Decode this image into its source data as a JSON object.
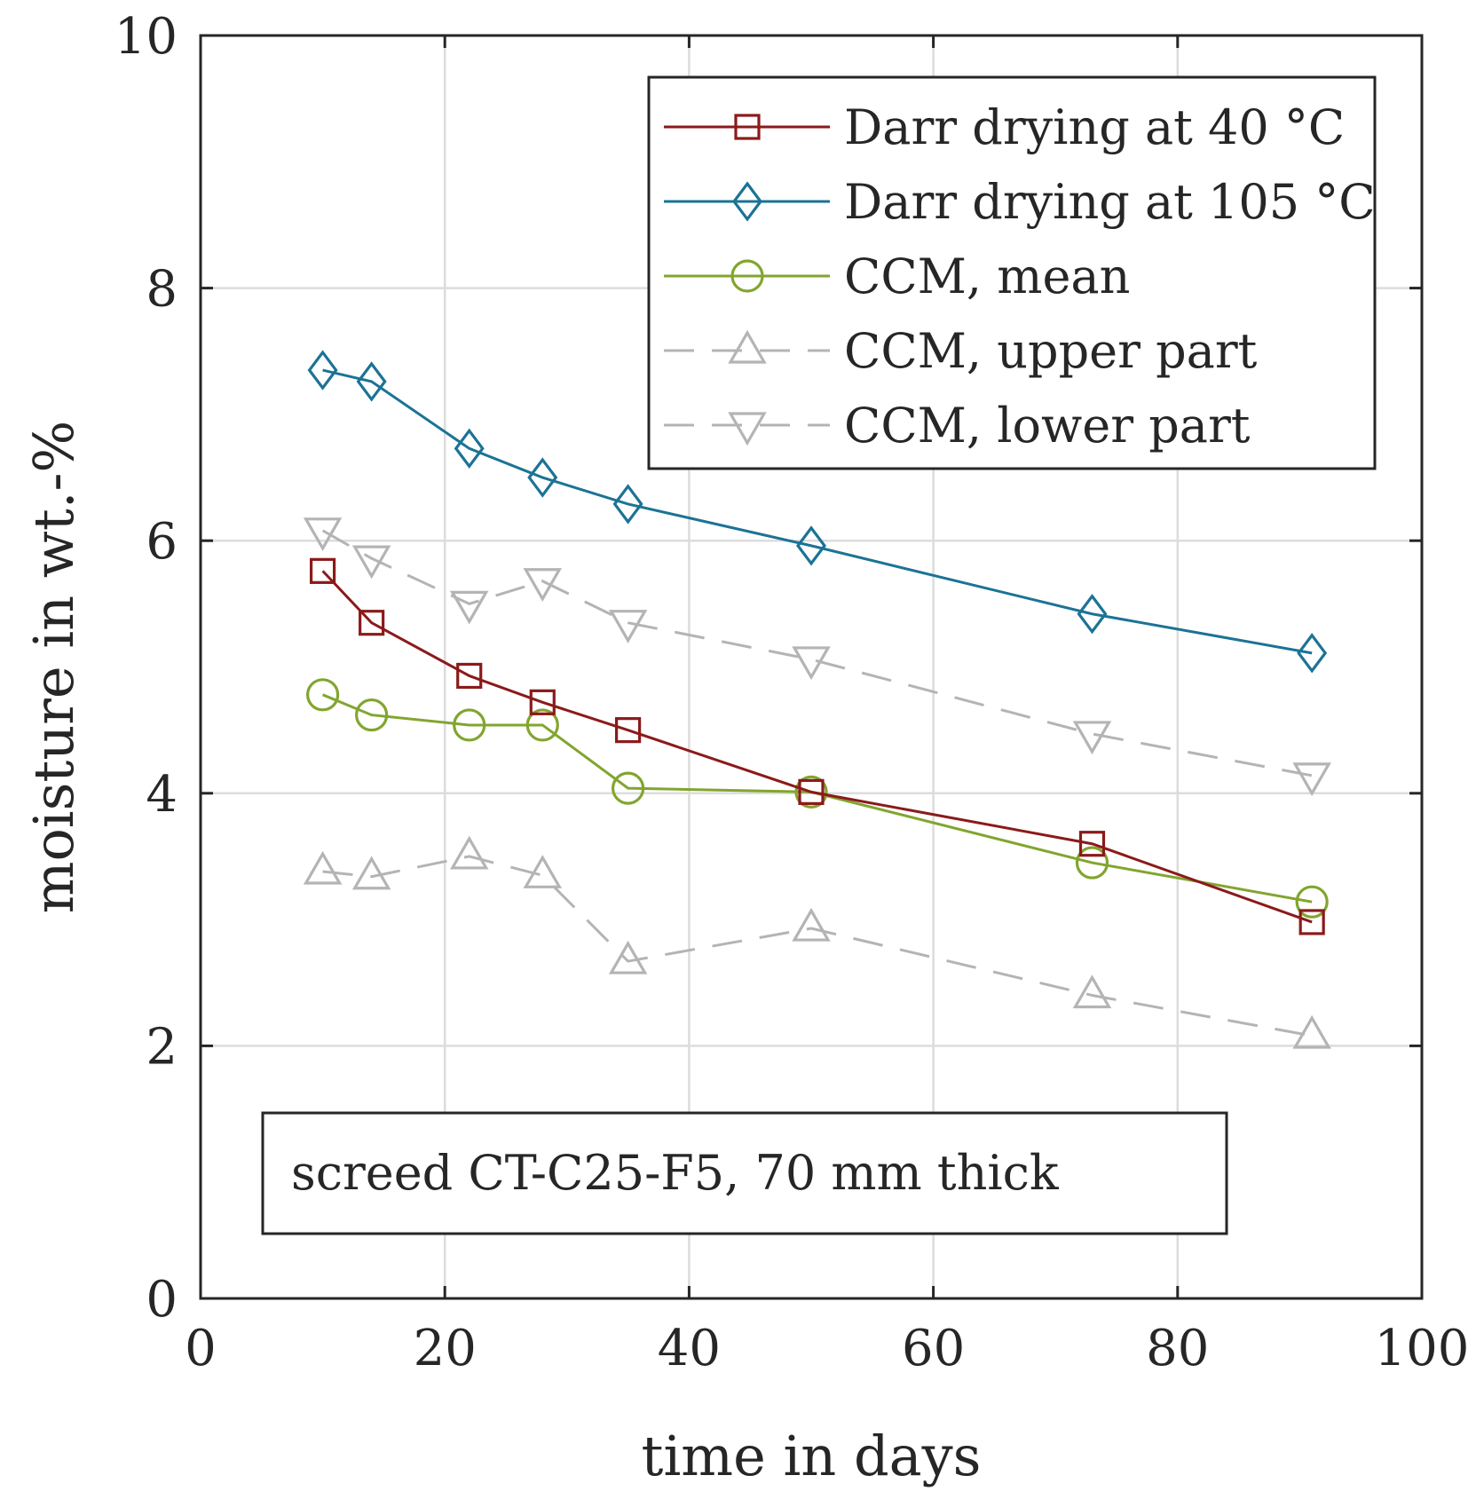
{
  "chart_data": {
    "type": "line",
    "title": "",
    "xlabel": "time in days",
    "ylabel": "moisture in wt.-%",
    "xlim": [
      0,
      100
    ],
    "ylim": [
      0,
      10
    ],
    "xticks": [
      0,
      20,
      40,
      60,
      80,
      100
    ],
    "yticks": [
      0,
      2,
      4,
      6,
      8,
      10
    ],
    "grid": true,
    "legend_position": "top-right",
    "annotation": "screed CT-C25-F5, 70 mm thick",
    "x": [
      10,
      14,
      22,
      28,
      35,
      50,
      73,
      91
    ],
    "series": [
      {
        "name": "Darr drying at 40 °C",
        "color": "#8b1a1a",
        "marker": "square",
        "dash": "solid",
        "values": [
          5.76,
          5.35,
          4.93,
          4.72,
          4.5,
          4.01,
          3.6,
          2.98
        ]
      },
      {
        "name": "Darr drying at 105 °C",
        "color": "#1b7395",
        "marker": "diamond",
        "dash": "solid",
        "values": [
          7.35,
          7.26,
          6.73,
          6.5,
          6.29,
          5.96,
          5.42,
          5.11
        ]
      },
      {
        "name": "CCM, mean",
        "color": "#82a52f",
        "marker": "circle",
        "dash": "solid",
        "values": [
          4.78,
          4.62,
          4.54,
          4.54,
          4.04,
          4.01,
          3.45,
          3.14
        ]
      },
      {
        "name": "CCM, upper part",
        "color": "#b4b4b4",
        "marker": "triangle-up",
        "dash": "dashed",
        "values": [
          3.38,
          3.34,
          3.5,
          3.35,
          2.67,
          2.93,
          2.4,
          2.08
        ]
      },
      {
        "name": "CCM, lower part",
        "color": "#b4b4b4",
        "marker": "triangle-down",
        "dash": "dashed",
        "values": [
          6.08,
          5.86,
          5.5,
          5.68,
          5.35,
          5.06,
          4.47,
          4.14
        ]
      }
    ]
  }
}
